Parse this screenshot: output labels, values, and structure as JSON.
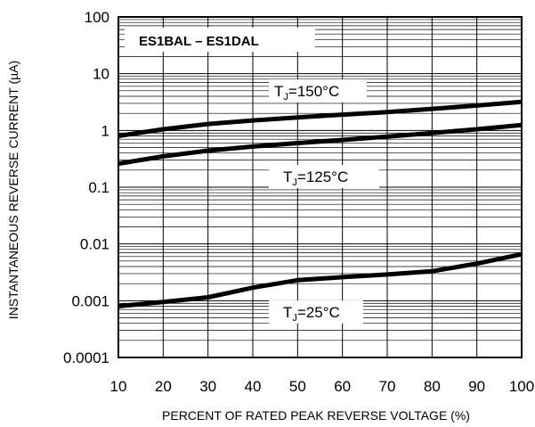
{
  "chart_data": {
    "type": "line",
    "title": "ES1BAL – ES1DAL",
    "xlabel": "PERCENT OF RATED PEAK REVERSE VOLTAGE (%)",
    "ylabel": "INSTANTANEOUS REVERSE CURRENT (µA)",
    "xlim": [
      10,
      100
    ],
    "ylim": [
      0.0001,
      100
    ],
    "yscale": "log",
    "grid": true,
    "x_ticks": [
      "10",
      "20",
      "30",
      "40",
      "50",
      "60",
      "70",
      "80",
      "90",
      "100"
    ],
    "y_ticks": [
      "0.0001",
      "0.001",
      "0.01",
      "0.1",
      "1",
      "10",
      "100"
    ],
    "series": [
      {
        "label_main": "T",
        "label_sub": "J",
        "label_rest": "=150°C",
        "x": [
          10,
          20,
          30,
          40,
          50,
          60,
          70,
          80,
          90,
          100
        ],
        "y": [
          0.8,
          1.05,
          1.3,
          1.5,
          1.7,
          1.9,
          2.1,
          2.4,
          2.75,
          3.2
        ]
      },
      {
        "label_main": "T",
        "label_sub": "J",
        "label_rest": "=125°C",
        "x": [
          10,
          20,
          30,
          40,
          50,
          60,
          70,
          80,
          90,
          100
        ],
        "y": [
          0.26,
          0.35,
          0.44,
          0.52,
          0.6,
          0.68,
          0.78,
          0.9,
          1.05,
          1.25
        ]
      },
      {
        "label_main": "T",
        "label_sub": "J",
        "label_rest": "=25°C",
        "x": [
          10,
          20,
          30,
          40,
          50,
          60,
          70,
          80,
          90,
          100
        ],
        "y": [
          0.0008,
          0.00095,
          0.00115,
          0.0017,
          0.0023,
          0.0026,
          0.0029,
          0.0033,
          0.0045,
          0.0066
        ]
      }
    ]
  }
}
